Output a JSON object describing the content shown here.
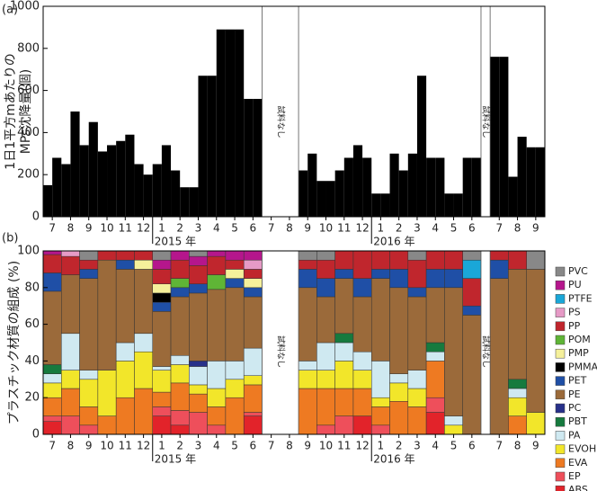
{
  "chart_data": [
    {
      "type": "bar",
      "panel_label": "(a)",
      "ylabel": [
        "1日1平方mあたりの",
        "MPs沈降量(個)"
      ],
      "xlim": [
        0,
        27.5
      ],
      "ylim": [
        0,
        1000
      ],
      "yticks": [
        0,
        200,
        400,
        600,
        800,
        1000
      ],
      "xticks": [
        {
          "value": 0.5,
          "label": "7"
        },
        {
          "value": 1.5,
          "label": "8"
        },
        {
          "value": 2.5,
          "label": "9"
        },
        {
          "value": 3.5,
          "label": "10"
        },
        {
          "value": 4.5,
          "label": "11"
        },
        {
          "value": 5.5,
          "label": "12"
        },
        {
          "value": 6.5,
          "label": "1"
        },
        {
          "value": 7.5,
          "label": "2"
        },
        {
          "value": 8.5,
          "label": "3"
        },
        {
          "value": 9.5,
          "label": "4"
        },
        {
          "value": 10.5,
          "label": "5"
        },
        {
          "value": 11.5,
          "label": "6"
        },
        {
          "value": 12.5,
          "label": "7"
        },
        {
          "value": 13.5,
          "label": "8"
        },
        {
          "value": 14.5,
          "label": "9"
        },
        {
          "value": 15.5,
          "label": "10"
        },
        {
          "value": 16.5,
          "label": "11"
        },
        {
          "value": 17.5,
          "label": "12"
        },
        {
          "value": 18.5,
          "label": "1"
        },
        {
          "value": 19.5,
          "label": "2"
        },
        {
          "value": 20.5,
          "label": "3"
        },
        {
          "value": 21.5,
          "label": "4"
        },
        {
          "value": 22.5,
          "label": "5"
        },
        {
          "value": 23.5,
          "label": "6"
        },
        {
          "value": 25,
          "label": "7"
        },
        {
          "value": 26,
          "label": "8"
        },
        {
          "value": 27,
          "label": "9"
        }
      ],
      "year_labels": [
        {
          "x": 6,
          "label": "2015 年"
        },
        {
          "x": 18,
          "label": "2016 年"
        }
      ],
      "no_sample": [
        {
          "from": 12,
          "to": 14,
          "label": "試料なし"
        },
        {
          "from": 24,
          "to": 24.5,
          "label": "試料なし"
        }
      ],
      "color": "#000000",
      "x": [
        0.25,
        0.75,
        1.25,
        1.75,
        2.25,
        2.75,
        3.25,
        3.75,
        4.25,
        4.75,
        5.25,
        5.75,
        6.25,
        6.75,
        7.25,
        7.75,
        8.25,
        8.75,
        9.25,
        9.75,
        10.25,
        10.75,
        11.25,
        11.75,
        14.25,
        14.75,
        15.25,
        15.75,
        16.25,
        16.75,
        17.25,
        17.75,
        18.25,
        18.75,
        19.25,
        19.75,
        20.25,
        20.75,
        21.25,
        21.75,
        22.25,
        22.75,
        23.25,
        23.75,
        24.75,
        25.25,
        25.75,
        26.25,
        26.75,
        27.25
      ],
      "values": [
        150,
        280,
        250,
        500,
        340,
        450,
        310,
        340,
        360,
        390,
        250,
        200,
        250,
        340,
        220,
        140,
        140,
        670,
        670,
        890,
        890,
        890,
        560,
        560,
        220,
        300,
        170,
        170,
        220,
        280,
        340,
        280,
        110,
        110,
        300,
        220,
        300,
        670,
        280,
        280,
        110,
        110,
        280,
        280,
        760,
        760,
        190,
        380,
        330,
        330
      ]
    },
    {
      "type": "stacked_bar",
      "panel_label": "(b)",
      "ylabel": [
        "プラスチック材質の組成 (%)"
      ],
      "xlim": [
        0,
        27.5
      ],
      "ylim": [
        0,
        100
      ],
      "yticks": [
        0,
        20,
        40,
        60,
        80,
        100
      ],
      "no_sample": [
        {
          "from": 12,
          "to": 14,
          "label": "試料なし"
        },
        {
          "from": 24,
          "to": 24.5,
          "label": "試料なし"
        }
      ],
      "x": [
        0.5,
        1.5,
        2.5,
        3.5,
        4.5,
        5.5,
        6.5,
        7.5,
        8.5,
        9.5,
        10.5,
        11.5,
        14.5,
        15.5,
        16.5,
        17.5,
        18.5,
        19.5,
        20.5,
        21.5,
        22.5,
        23.5,
        25,
        26,
        27
      ],
      "series": [
        {
          "name": "ABS",
          "color": "#e2232a",
          "values": [
            7,
            0,
            0,
            0,
            0,
            0,
            10,
            5,
            0,
            0,
            0,
            10,
            0,
            0,
            0,
            10,
            0,
            0,
            0,
            12,
            0,
            0,
            0,
            0,
            0
          ]
        },
        {
          "name": "EP",
          "color": "#ee4f5b",
          "values": [
            3,
            10,
            5,
            0,
            0,
            0,
            5,
            8,
            12,
            5,
            0,
            2,
            0,
            5,
            10,
            0,
            5,
            0,
            0,
            8,
            0,
            0,
            0,
            0,
            0
          ]
        },
        {
          "name": "EVA",
          "color": "#ee7a22",
          "values": [
            10,
            15,
            10,
            10,
            20,
            25,
            8,
            15,
            10,
            10,
            20,
            15,
            25,
            20,
            15,
            15,
            10,
            18,
            15,
            20,
            0,
            0,
            0,
            10,
            0
          ]
        },
        {
          "name": "EVOH",
          "color": "#f2e62a",
          "values": [
            8,
            10,
            15,
            25,
            20,
            20,
            12,
            10,
            5,
            10,
            10,
            5,
            10,
            10,
            15,
            10,
            5,
            10,
            10,
            0,
            5,
            0,
            0,
            10,
            12
          ]
        },
        {
          "name": "PA",
          "color": "#cfe9f1",
          "values": [
            5,
            20,
            5,
            0,
            10,
            10,
            2,
            5,
            10,
            15,
            10,
            15,
            5,
            15,
            10,
            10,
            20,
            5,
            10,
            5,
            5,
            0,
            0,
            5,
            0
          ]
        },
        {
          "name": "PBT",
          "color": "#167a3e",
          "values": [
            5,
            0,
            0,
            0,
            0,
            0,
            0,
            0,
            0,
            0,
            0,
            0,
            0,
            0,
            5,
            0,
            0,
            0,
            0,
            5,
            0,
            0,
            0,
            5,
            0
          ]
        },
        {
          "name": "PC",
          "color": "#27308a",
          "values": [
            0,
            0,
            0,
            0,
            0,
            0,
            0,
            0,
            3,
            0,
            0,
            0,
            0,
            0,
            0,
            0,
            0,
            0,
            0,
            0,
            0,
            0,
            0,
            0,
            0
          ]
        },
        {
          "name": "PE",
          "color": "#9b6a3a",
          "values": [
            40,
            32,
            50,
            60,
            40,
            35,
            30,
            32,
            37,
            39,
            40,
            28,
            40,
            25,
            30,
            30,
            45,
            47,
            40,
            30,
            70,
            65,
            85,
            60,
            78
          ]
        },
        {
          "name": "PET",
          "color": "#1f4fa6",
          "values": [
            10,
            0,
            5,
            0,
            5,
            0,
            5,
            5,
            5,
            0,
            5,
            5,
            10,
            10,
            5,
            10,
            5,
            10,
            5,
            10,
            10,
            5,
            10,
            0,
            0
          ]
        },
        {
          "name": "PMMA",
          "color": "#000000",
          "values": [
            0,
            0,
            0,
            0,
            0,
            0,
            5,
            0,
            0,
            0,
            0,
            0,
            0,
            0,
            0,
            0,
            0,
            0,
            0,
            0,
            0,
            0,
            0,
            0,
            0
          ]
        },
        {
          "name": "PMP",
          "color": "#f5f09b",
          "values": [
            0,
            0,
            0,
            0,
            0,
            5,
            5,
            0,
            0,
            0,
            5,
            5,
            0,
            0,
            0,
            0,
            0,
            0,
            0,
            0,
            0,
            0,
            0,
            0,
            0
          ]
        },
        {
          "name": "POM",
          "color": "#5fb536",
          "values": [
            0,
            0,
            0,
            0,
            0,
            0,
            0,
            5,
            0,
            8,
            0,
            0,
            0,
            0,
            0,
            0,
            0,
            0,
            0,
            0,
            0,
            0,
            0,
            0,
            0
          ]
        },
        {
          "name": "PP",
          "color": "#c0262d",
          "values": [
            10,
            10,
            5,
            5,
            5,
            5,
            8,
            10,
            10,
            10,
            5,
            5,
            5,
            10,
            10,
            15,
            10,
            10,
            15,
            10,
            10,
            15,
            5,
            10,
            0
          ]
        },
        {
          "name": "PS",
          "color": "#e69ac6",
          "values": [
            0,
            3,
            0,
            0,
            0,
            0,
            0,
            0,
            0,
            0,
            0,
            5,
            0,
            0,
            0,
            0,
            0,
            0,
            0,
            0,
            0,
            0,
            0,
            0,
            0
          ]
        },
        {
          "name": "PTFE",
          "color": "#1aa7d8",
          "values": [
            0,
            0,
            0,
            0,
            0,
            0,
            0,
            0,
            0,
            0,
            0,
            0,
            0,
            0,
            0,
            0,
            0,
            0,
            0,
            0,
            0,
            10,
            0,
            0,
            0
          ]
        },
        {
          "name": "PU",
          "color": "#b5168c",
          "values": [
            2,
            0,
            0,
            0,
            0,
            0,
            5,
            5,
            5,
            3,
            5,
            5,
            0,
            0,
            0,
            0,
            0,
            0,
            0,
            0,
            0,
            0,
            0,
            0,
            0
          ]
        },
        {
          "name": "PVC",
          "color": "#888888",
          "values": [
            0,
            0,
            5,
            0,
            0,
            0,
            5,
            0,
            3,
            0,
            0,
            0,
            5,
            5,
            0,
            0,
            0,
            0,
            5,
            0,
            0,
            5,
            0,
            0,
            10
          ]
        }
      ]
    }
  ]
}
